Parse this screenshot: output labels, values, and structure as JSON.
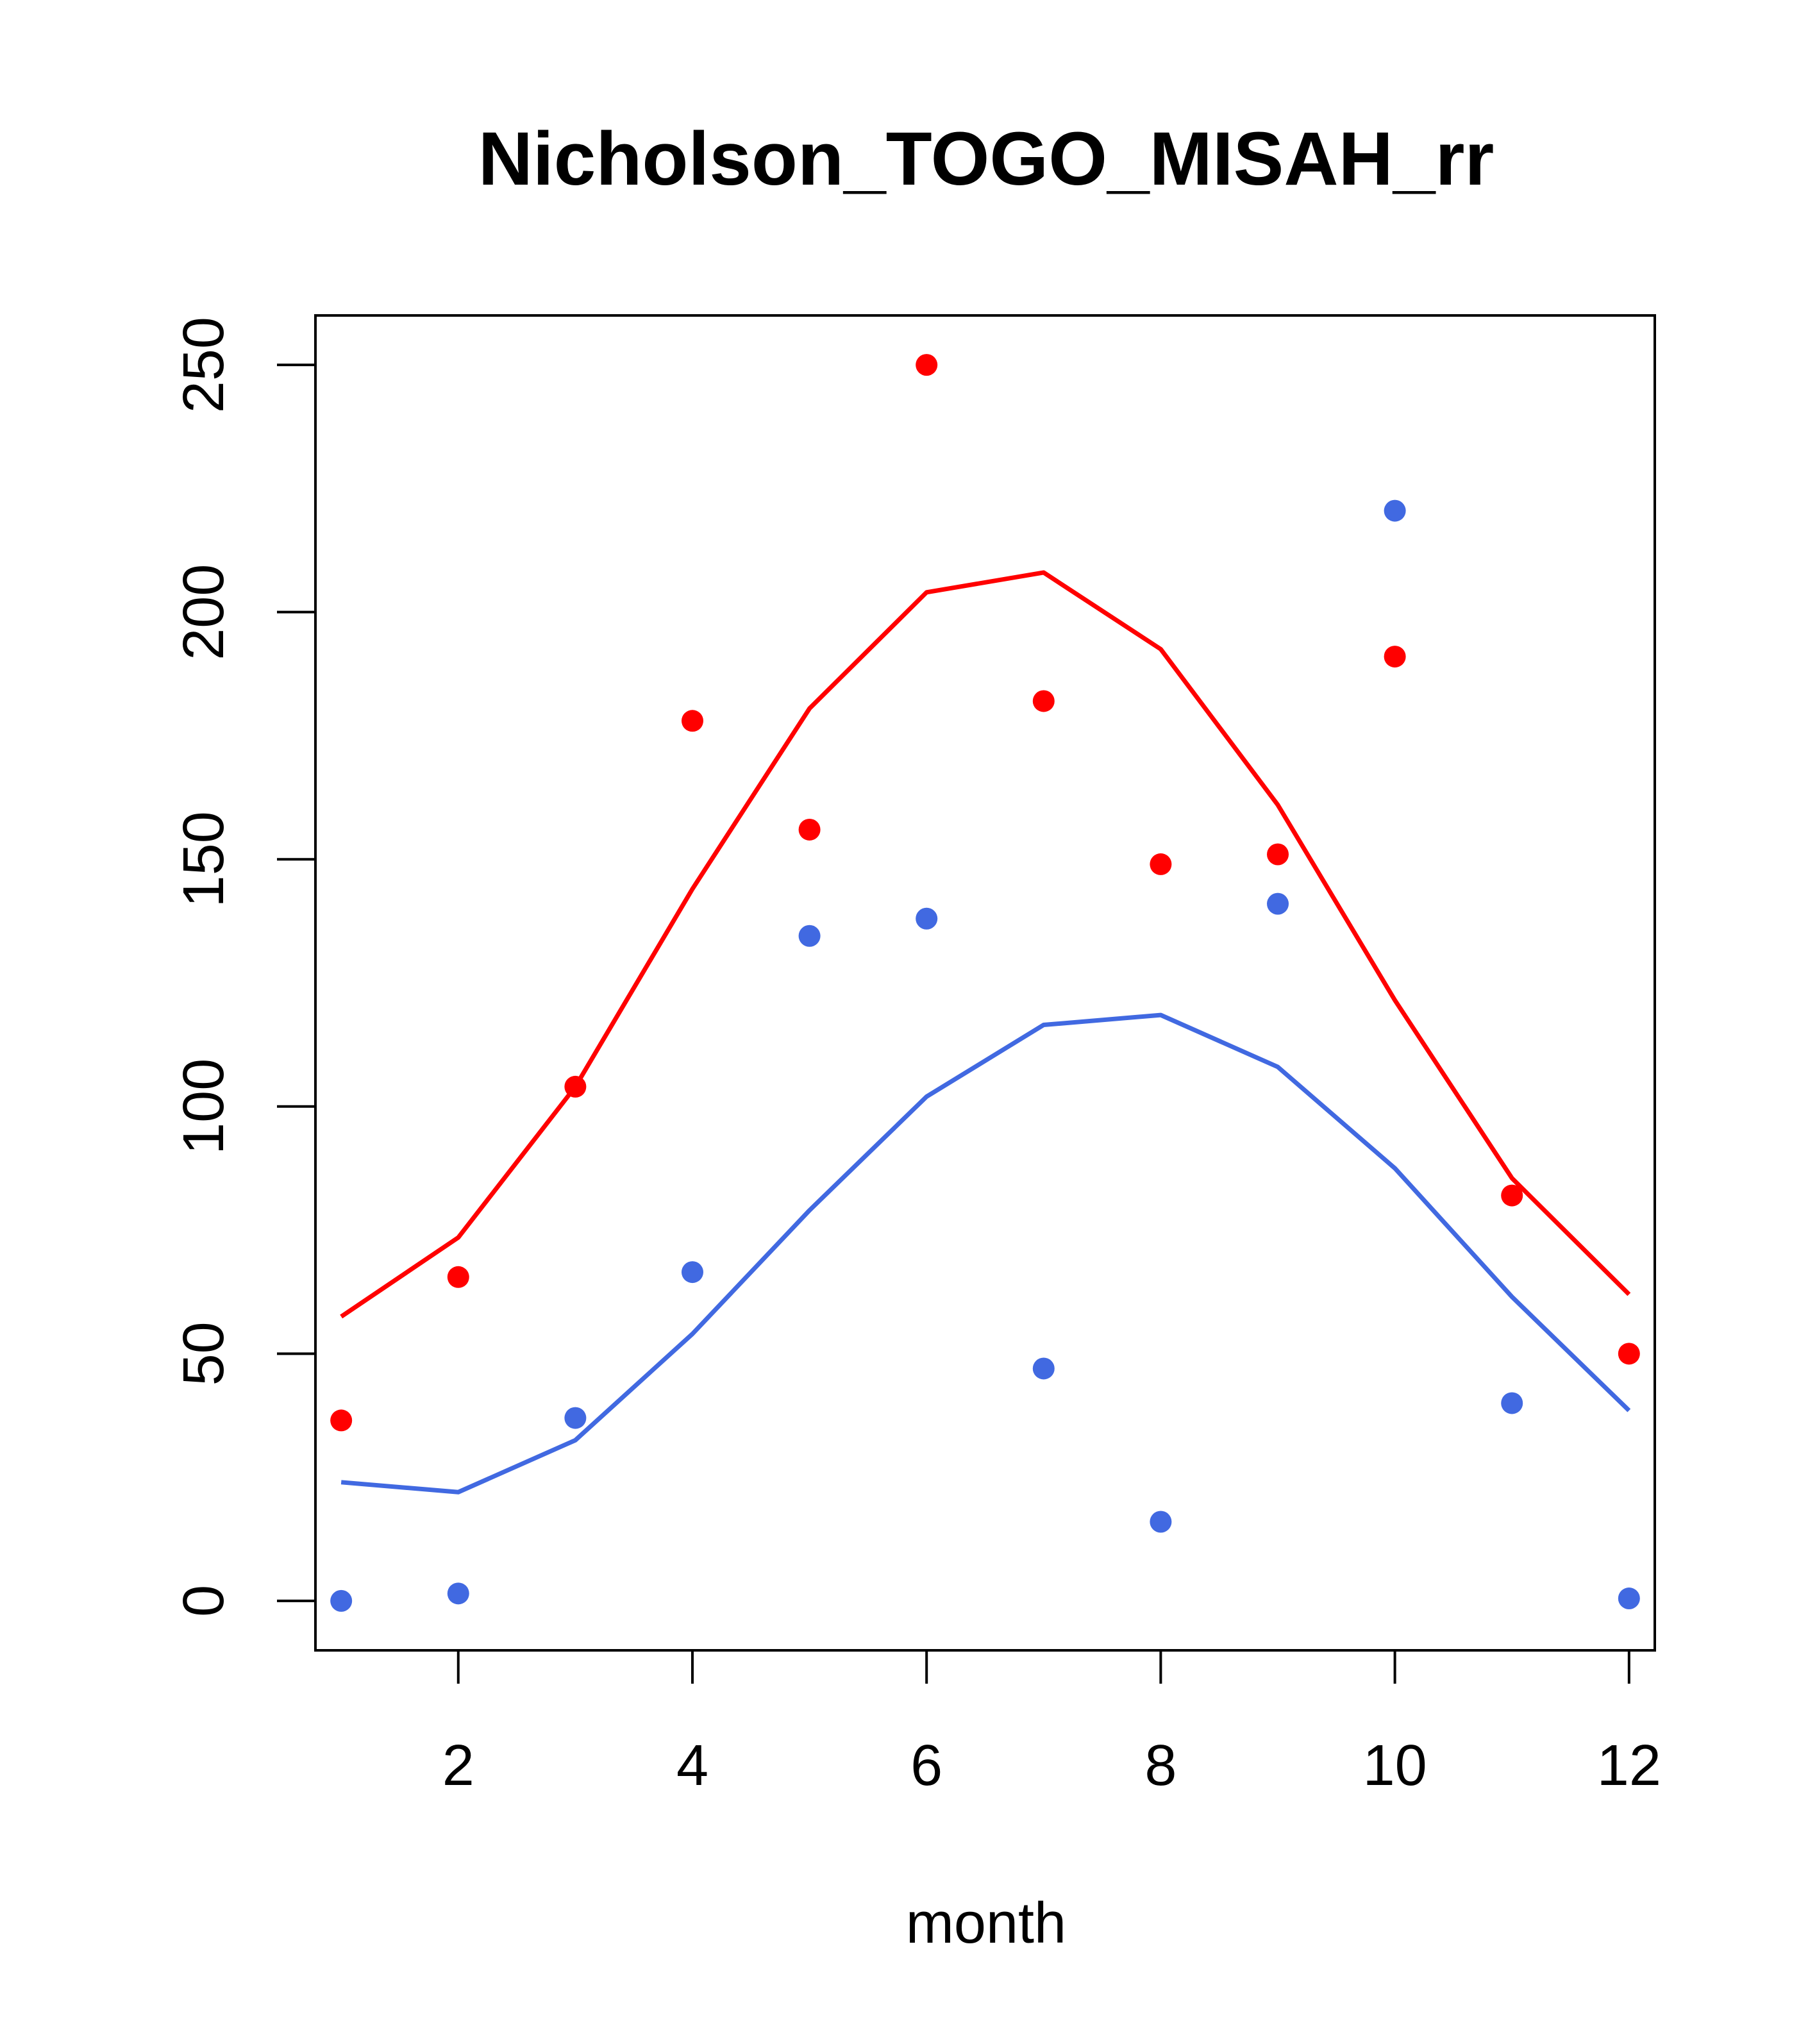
{
  "chart_data": {
    "type": "scatter",
    "title": "Nicholson_TOGO_MISAH_rr",
    "xlabel": "month",
    "ylabel": "",
    "xlim": [
      0.78,
      12.22
    ],
    "ylim": [
      -10,
      260
    ],
    "xticks": [
      2,
      4,
      6,
      8,
      10,
      12
    ],
    "yticks": [
      0,
      50,
      100,
      150,
      200,
      250
    ],
    "xtick_labels": [
      "2",
      "4",
      "6",
      "8",
      "10",
      "12"
    ],
    "ytick_labels": [
      "0",
      "50",
      "100",
      "150",
      "200",
      "250"
    ],
    "grid": false,
    "legend": "none",
    "x": [
      1,
      2,
      3,
      4,
      5,
      6,
      7,
      8,
      9,
      10,
      11,
      12
    ],
    "series": [
      {
        "name": "red points",
        "kind": "points",
        "color": "#ff0000",
        "values": [
          36.5,
          65.5,
          104,
          178,
          156,
          250,
          182,
          149,
          151,
          191,
          82,
          50
        ]
      },
      {
        "name": "red line",
        "kind": "line",
        "color": "#ff0000",
        "values": [
          57.5,
          73.5,
          104,
          144,
          180.5,
          204,
          208,
          192.5,
          161,
          121.5,
          85.5,
          62
        ]
      },
      {
        "name": "blue points",
        "kind": "points",
        "color": "#4169e1",
        "values": [
          0,
          1.5,
          37,
          66.5,
          134.5,
          138,
          47,
          16,
          141,
          220.5,
          40,
          0.5
        ]
      },
      {
        "name": "blue line",
        "kind": "line",
        "color": "#4169e1",
        "values": [
          24,
          22,
          32.5,
          54,
          79,
          102,
          116.5,
          118.5,
          108,
          87.5,
          61.5,
          38.5
        ]
      }
    ]
  }
}
